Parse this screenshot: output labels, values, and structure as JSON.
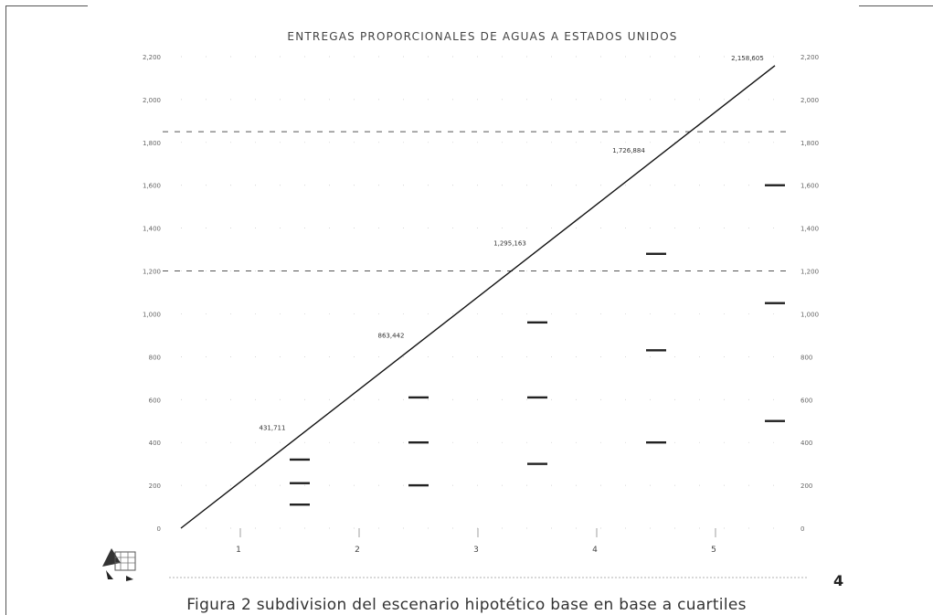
{
  "page_number": "4",
  "caption": "Figura 2 subdivision del escenario hipotético base en base a cuartiles",
  "chart_data": {
    "type": "line",
    "title": "ENTREGAS PROPORCIONALES DE AGUAS A ESTADOS UNIDOS",
    "xlabel": "",
    "ylabel": "",
    "y2label": "",
    "x_ticks": [
      "1",
      "2",
      "3",
      "4",
      "5"
    ],
    "xlim": [
      0.5,
      5.5
    ],
    "ylim": [
      0,
      2200
    ],
    "y_ticks": [
      "0",
      "200",
      "400",
      "600",
      "800",
      "1,000",
      "1,200",
      "1,400",
      "1,600",
      "1,800",
      "2,000",
      "2,200"
    ],
    "y2_ticks": [
      "0",
      "200",
      "400",
      "600",
      "800",
      "1,000",
      "1,200",
      "1,400",
      "1,600",
      "1,800",
      "2,000",
      "2,200"
    ],
    "series": [
      {
        "x": [
          0.5,
          5.5
        ],
        "y": [
          0,
          2158
        ]
      }
    ],
    "reference_lines": [
      1200,
      1850
    ],
    "point_labels": [
      {
        "x": 1.5,
        "y": 432,
        "label": "431,711"
      },
      {
        "x": 2.5,
        "y": 863,
        "label": "863,442"
      },
      {
        "x": 3.5,
        "y": 1295,
        "label": "1,295,163"
      },
      {
        "x": 4.5,
        "y": 1727,
        "label": "1,726,884"
      },
      {
        "x": 5.5,
        "y": 2158,
        "label": "2,158,605"
      }
    ],
    "markers": [
      {
        "x": 1.5,
        "y": 320
      },
      {
        "x": 1.5,
        "y": 210
      },
      {
        "x": 1.5,
        "y": 110
      },
      {
        "x": 2.5,
        "y": 610
      },
      {
        "x": 2.5,
        "y": 400
      },
      {
        "x": 2.5,
        "y": 200
      },
      {
        "x": 3.5,
        "y": 960
      },
      {
        "x": 3.5,
        "y": 610
      },
      {
        "x": 3.5,
        "y": 300
      },
      {
        "x": 4.5,
        "y": 1280
      },
      {
        "x": 4.5,
        "y": 830
      },
      {
        "x": 4.5,
        "y": 400
      },
      {
        "x": 5.5,
        "y": 1600
      },
      {
        "x": 5.5,
        "y": 1050
      },
      {
        "x": 5.5,
        "y": 500
      }
    ]
  }
}
